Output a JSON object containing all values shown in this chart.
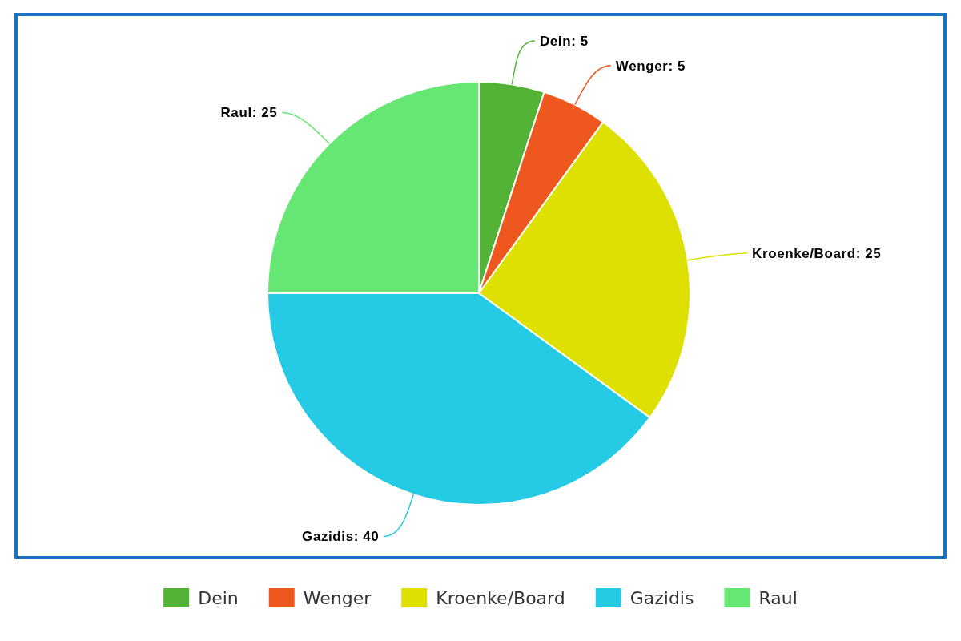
{
  "chart_data": {
    "type": "pie",
    "categories": [
      "Dein",
      "Wenger",
      "Kroenke/Board",
      "Gazidis",
      "Raul"
    ],
    "values": [
      5,
      5,
      25,
      40,
      25
    ],
    "value_labels": [
      "Dein: 5",
      "Wenger: 5",
      "Kroenke/Board: 25",
      "Gazidis: 40",
      "Raul: 25"
    ],
    "colors": [
      "#52b336",
      "#ee571e",
      "#dde000",
      "#25cbe4",
      "#66e673"
    ],
    "legend": "bottom"
  }
}
